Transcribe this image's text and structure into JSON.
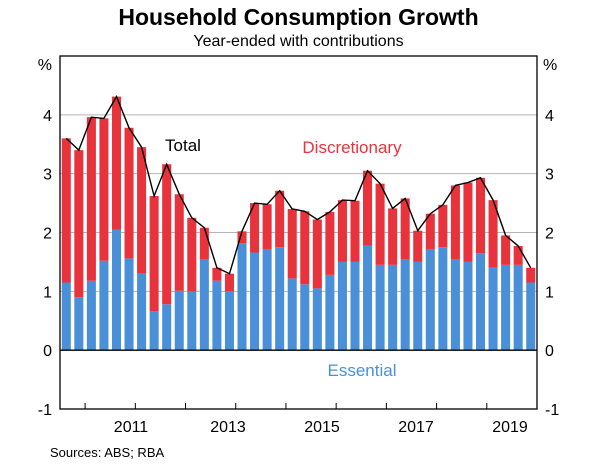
{
  "chart_data": {
    "type": "bar",
    "title": "Household Consumption Growth",
    "subtitle": "Year-ended with contributions",
    "ylabel_left": "%",
    "ylabel_right": "%",
    "ylim": [
      -1,
      5
    ],
    "yticks": [
      "-1",
      "0",
      "1",
      "2",
      "3",
      "4"
    ],
    "xticks": [
      "2011",
      "2013",
      "2015",
      "2017",
      "2019"
    ],
    "stacked": true,
    "annotations": {
      "total": "Total",
      "discretionary": "Discretionary",
      "essential": "Essential"
    },
    "series": [
      {
        "name": "Essential",
        "color": "#4a90d9",
        "values": [
          1.15,
          0.9,
          1.18,
          1.52,
          2.05,
          1.56,
          1.3,
          0.66,
          0.78,
          1.01,
          1.0,
          1.55,
          1.18,
          1.0,
          1.82,
          1.66,
          1.72,
          1.75,
          1.22,
          1.12,
          1.05,
          1.28,
          1.5,
          1.5,
          1.78,
          1.45,
          1.45,
          1.55,
          1.5,
          1.72,
          1.75,
          1.55,
          1.5,
          1.65,
          1.4,
          1.45,
          1.45,
          1.15
        ]
      },
      {
        "name": "Discretionary",
        "color": "#e8323c",
        "values": [
          2.45,
          2.5,
          2.78,
          2.42,
          2.26,
          2.22,
          2.15,
          1.96,
          2.38,
          1.64,
          1.25,
          0.53,
          0.22,
          0.3,
          0.2,
          0.84,
          0.76,
          0.96,
          1.18,
          1.24,
          1.17,
          1.07,
          1.05,
          1.04,
          1.27,
          1.38,
          0.96,
          1.03,
          0.53,
          0.6,
          0.72,
          1.25,
          1.35,
          1.28,
          1.15,
          0.5,
          0.32,
          0.25
        ]
      }
    ],
    "total": {
      "name": "Total",
      "color": "#000000",
      "values": [
        3.6,
        3.4,
        3.96,
        3.94,
        4.31,
        3.78,
        3.45,
        2.62,
        3.16,
        2.65,
        2.25,
        2.08,
        1.4,
        1.3,
        2.02,
        2.5,
        2.48,
        2.71,
        2.4,
        2.36,
        2.22,
        2.35,
        2.55,
        2.54,
        3.05,
        2.83,
        2.41,
        2.58,
        2.03,
        2.32,
        2.47,
        2.8,
        2.85,
        2.93,
        2.55,
        1.95,
        1.77,
        1.4
      ]
    }
  },
  "source": "Sources:   ABS; RBA"
}
